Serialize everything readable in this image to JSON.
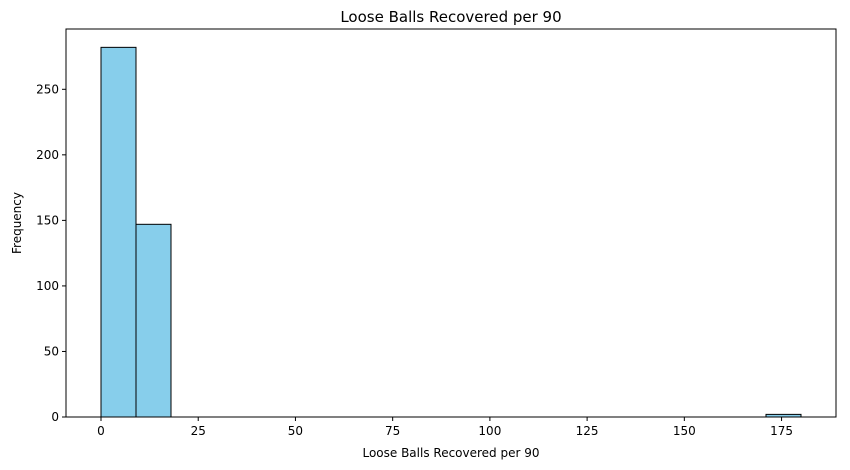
{
  "chart_data": {
    "type": "bar",
    "title": "Loose Balls Recovered per 90",
    "xlabel": "Loose Balls Recovered per 90",
    "ylabel": "Frequency",
    "bin_edges": [
      0,
      9,
      18,
      27,
      36,
      45,
      54,
      63,
      72,
      81,
      90,
      99,
      108,
      117,
      126,
      135,
      144,
      153,
      162,
      171,
      180
    ],
    "values": [
      282,
      147,
      0,
      0,
      0,
      0,
      0,
      0,
      0,
      0,
      0,
      0,
      0,
      0,
      0,
      0,
      0,
      0,
      0,
      2
    ],
    "xlim": [
      -9,
      189
    ],
    "ylim": [
      0,
      296
    ],
    "xticks": [
      0,
      25,
      50,
      75,
      100,
      125,
      150,
      175
    ],
    "yticks": [
      0,
      50,
      100,
      150,
      200,
      250
    ],
    "bar_color": "#87CEEB",
    "edge_color": "#000000",
    "grid": false,
    "legend": "none"
  }
}
